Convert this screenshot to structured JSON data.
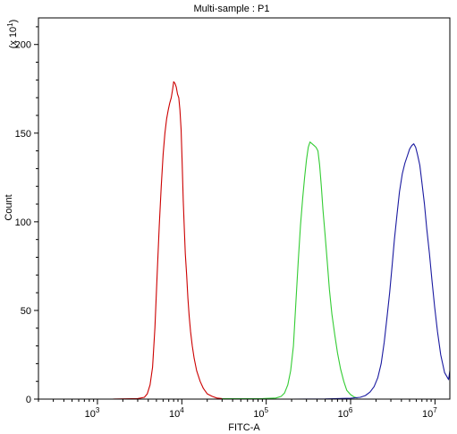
{
  "chart_data": {
    "type": "line",
    "title": "Multi-sample : P1",
    "xlabel": "FITC-A",
    "ylabel": "Count",
    "y_scale_label": "(x 10",
    "y_scale_exponent": "1",
    "y_scale_close": ")",
    "x_scale": "log",
    "xlim": [
      200,
      15000000
    ],
    "ylim": [
      0,
      215
    ],
    "x_ticks": [
      {
        "value": 1000,
        "base": "10",
        "exp": "3"
      },
      {
        "value": 10000,
        "base": "10",
        "exp": "4"
      },
      {
        "value": 100000,
        "base": "10",
        "exp": "5"
      },
      {
        "value": 1000000,
        "base": "10",
        "exp": "6"
      },
      {
        "value": 10000000,
        "base": "10",
        "exp": "7"
      }
    ],
    "y_ticks": [
      0,
      50,
      100,
      150,
      200
    ],
    "grid": false,
    "legend": "none",
    "series": [
      {
        "color": "#cc0000",
        "points": [
          [
            1500,
            0
          ],
          [
            3000,
            0.3
          ],
          [
            3600,
            1
          ],
          [
            3900,
            3
          ],
          [
            4200,
            8
          ],
          [
            4500,
            18
          ],
          [
            4800,
            40
          ],
          [
            5100,
            70
          ],
          [
            5400,
            98
          ],
          [
            5700,
            120
          ],
          [
            6000,
            138
          ],
          [
            6300,
            150
          ],
          [
            6600,
            158
          ],
          [
            6900,
            163
          ],
          [
            7200,
            167
          ],
          [
            7500,
            170
          ],
          [
            7800,
            175
          ],
          [
            8000,
            179
          ],
          [
            8300,
            178
          ],
          [
            8600,
            176
          ],
          [
            8900,
            172
          ],
          [
            9200,
            170
          ],
          [
            9500,
            163
          ],
          [
            9800,
            152
          ],
          [
            10100,
            133
          ],
          [
            10400,
            112
          ],
          [
            10700,
            96
          ],
          [
            11000,
            82
          ],
          [
            11400,
            70
          ],
          [
            11800,
            57
          ],
          [
            12200,
            47
          ],
          [
            12700,
            38
          ],
          [
            13300,
            30
          ],
          [
            14000,
            23
          ],
          [
            15000,
            16
          ],
          [
            16500,
            10
          ],
          [
            18000,
            6
          ],
          [
            20000,
            3
          ],
          [
            23000,
            1.5
          ],
          [
            26000,
            0.6
          ],
          [
            30000,
            0.3
          ],
          [
            40000,
            0.2
          ],
          [
            60000,
            0
          ]
        ]
      },
      {
        "color": "#33cc33",
        "points": [
          [
            30000,
            0.2
          ],
          [
            90000,
            0.3
          ],
          [
            130000,
            0.6
          ],
          [
            150000,
            1.5
          ],
          [
            165000,
            3.5
          ],
          [
            180000,
            8
          ],
          [
            195000,
            16
          ],
          [
            210000,
            30
          ],
          [
            225000,
            55
          ],
          [
            240000,
            78
          ],
          [
            255000,
            98
          ],
          [
            270000,
            113
          ],
          [
            285000,
            125
          ],
          [
            300000,
            135
          ],
          [
            315000,
            142
          ],
          [
            330000,
            145
          ],
          [
            350000,
            144
          ],
          [
            370000,
            143
          ],
          [
            390000,
            142
          ],
          [
            410000,
            140
          ],
          [
            430000,
            132
          ],
          [
            450000,
            120
          ],
          [
            470000,
            107
          ],
          [
            500000,
            92
          ],
          [
            530000,
            77
          ],
          [
            560000,
            62
          ],
          [
            600000,
            48
          ],
          [
            650000,
            36
          ],
          [
            700000,
            26
          ],
          [
            760000,
            17
          ],
          [
            830000,
            10
          ],
          [
            900000,
            5
          ],
          [
            1000000,
            2.5
          ],
          [
            1100000,
            1.2
          ],
          [
            1200000,
            0.6
          ]
        ]
      },
      {
        "color": "#1a1aa0",
        "points": [
          [
            200000,
            0
          ],
          [
            500000,
            0.1
          ],
          [
            1000000,
            0.5
          ],
          [
            1300000,
            1
          ],
          [
            1500000,
            2
          ],
          [
            1700000,
            4
          ],
          [
            1900000,
            7
          ],
          [
            2100000,
            12
          ],
          [
            2300000,
            20
          ],
          [
            2500000,
            32
          ],
          [
            2700000,
            46
          ],
          [
            2900000,
            60
          ],
          [
            3100000,
            75
          ],
          [
            3300000,
            90
          ],
          [
            3550000,
            104
          ],
          [
            3800000,
            117
          ],
          [
            4100000,
            127
          ],
          [
            4400000,
            133
          ],
          [
            4700000,
            137
          ],
          [
            5000000,
            141
          ],
          [
            5300000,
            143
          ],
          [
            5600000,
            144
          ],
          [
            5900000,
            142
          ],
          [
            6200000,
            138
          ],
          [
            6600000,
            132
          ],
          [
            7000000,
            122
          ],
          [
            7500000,
            110
          ],
          [
            8000000,
            96
          ],
          [
            8600000,
            82
          ],
          [
            9200000,
            67
          ],
          [
            9900000,
            52
          ],
          [
            10700000,
            38
          ],
          [
            11700000,
            25
          ],
          [
            13000,
            0
          ],
          [
            13000000,
            15
          ],
          [
            14500000,
            11
          ],
          [
            15000000,
            16
          ]
        ]
      }
    ]
  }
}
